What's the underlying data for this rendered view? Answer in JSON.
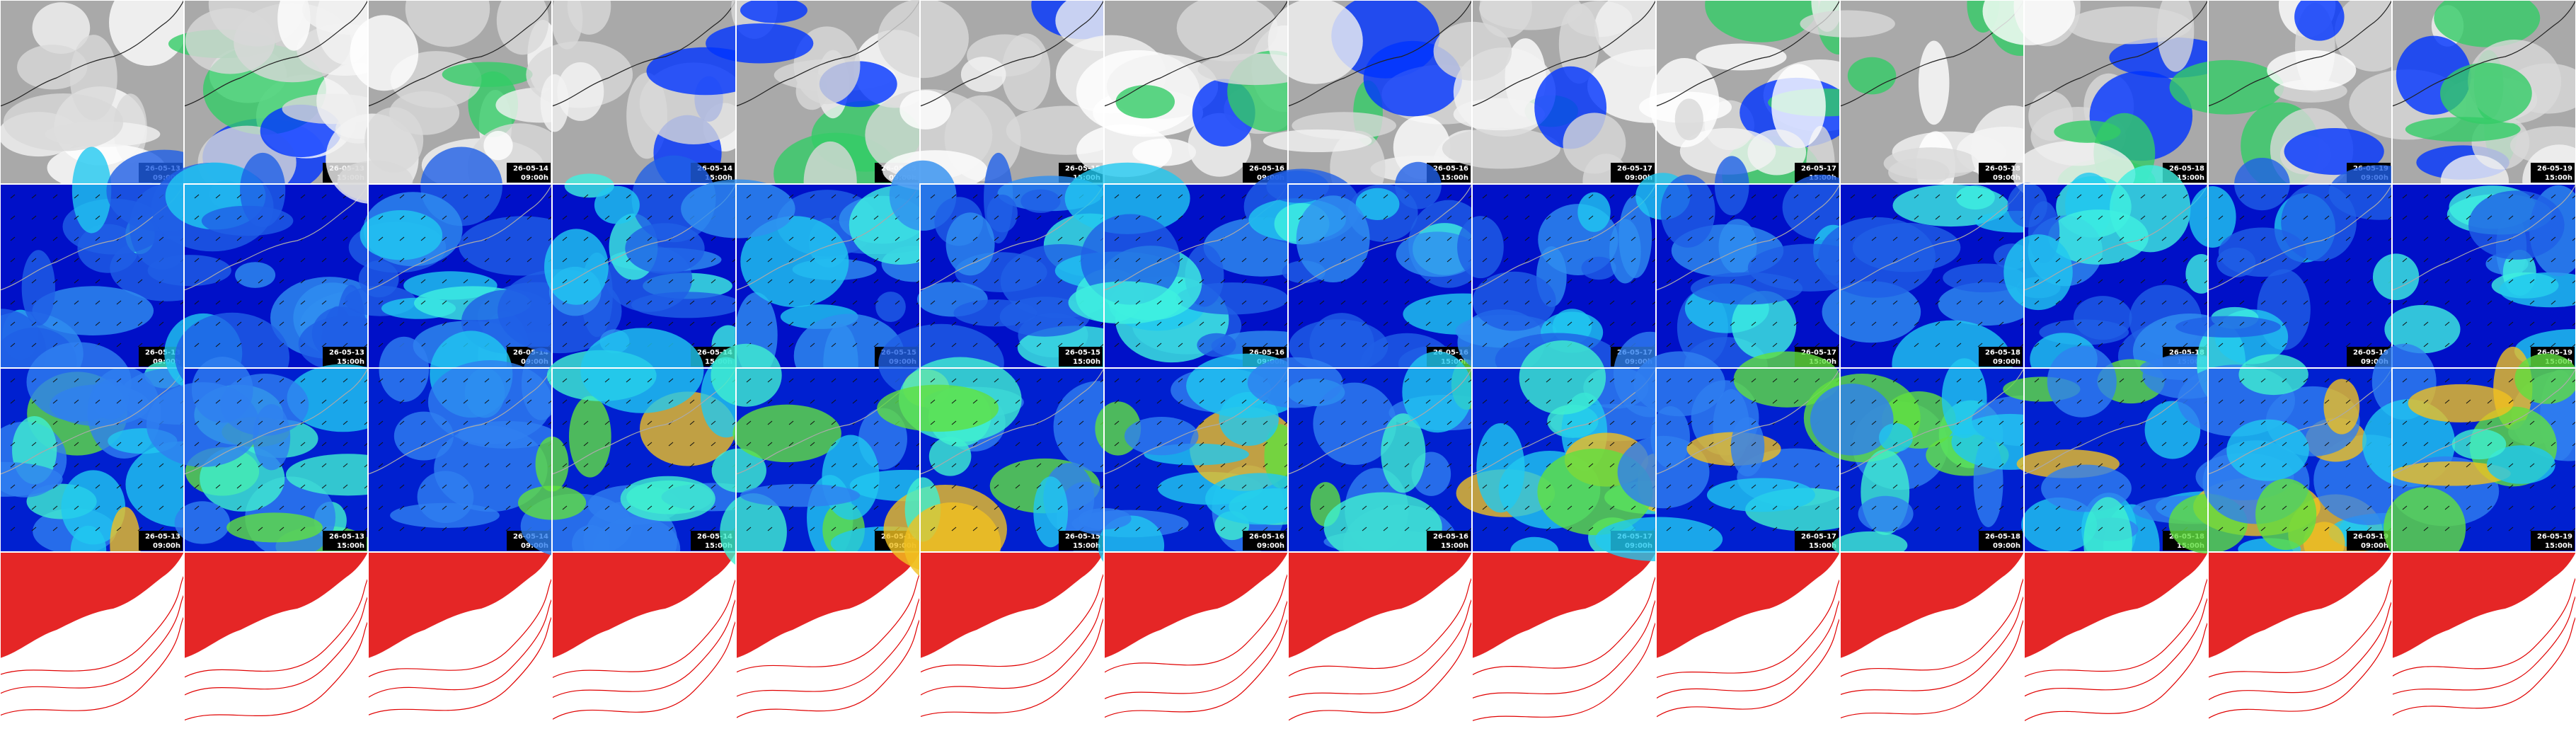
{
  "panels": [
    {
      "date": "26-05-13",
      "time": "09:00h"
    },
    {
      "date": "26-05-13",
      "time": "15:00h"
    },
    {
      "date": "26-05-14",
      "time": "09:00h"
    },
    {
      "date": "26-05-14",
      "time": "15:00h"
    },
    {
      "date": "26-05-15",
      "time": "09:00h"
    },
    {
      "date": "26-05-15",
      "time": "15:00h"
    },
    {
      "date": "26-05-16",
      "time": "09:00h"
    },
    {
      "date": "26-05-16",
      "time": "15:00h"
    },
    {
      "date": "26-05-17",
      "time": "09:00h"
    },
    {
      "date": "26-05-17",
      "time": "15:00h"
    },
    {
      "date": "26-05-18",
      "time": "09:00h"
    },
    {
      "date": "26-05-18",
      "time": "15:00h"
    },
    {
      "date": "26-05-19",
      "time": "09:00h"
    },
    {
      "date": "26-05-19",
      "time": "15:00h"
    }
  ]
}
